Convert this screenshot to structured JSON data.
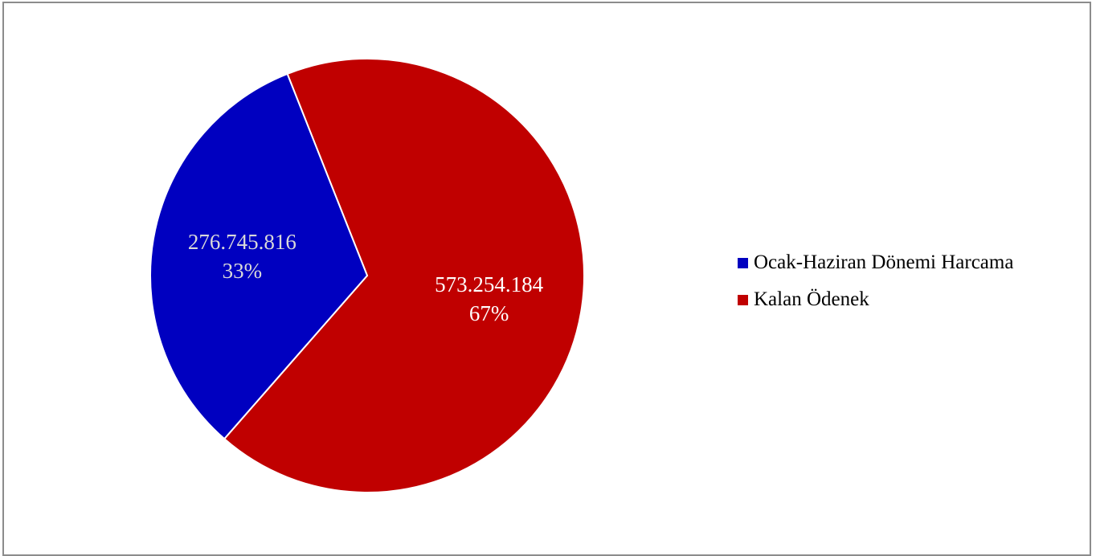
{
  "chart_data": {
    "type": "pie",
    "slices": [
      {
        "name": "Ocak-Haziran Dönemi Harcama",
        "value": 276745816,
        "value_label": "276.745.816",
        "percent_label": "33%",
        "color": "#0000c0",
        "label_color": "#d9d9d9"
      },
      {
        "name": "Kalan Ödenek",
        "value": 573254184,
        "value_label": "573.254.184",
        "percent_label": "67%",
        "color": "#c00000",
        "label_color": "#ffffff"
      }
    ],
    "legend_position": "right",
    "slice_border_color": "#ffffff"
  }
}
